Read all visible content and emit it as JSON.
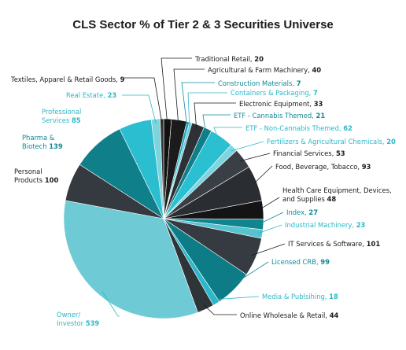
{
  "chart_data": {
    "type": "pie",
    "title": "CLS Sector % of Tier 2 & 3 Securities Universe",
    "slices": [
      {
        "label": "Traditional Retail",
        "value": 20,
        "color": "#111111"
      },
      {
        "label": "Agricultural & Farm Machinery",
        "value": 40,
        "color": "#1b1b1b"
      },
      {
        "label": "Construction Materials",
        "value": 7,
        "color": "#17a9c1"
      },
      {
        "label": "Containers & Packaging",
        "value": 7,
        "color": "#6fcfda"
      },
      {
        "label": "Electronic Equipment",
        "value": 33,
        "color": "#2d3136"
      },
      {
        "label": "ETF - Cannabis Themed",
        "value": 21,
        "color": "#0e7f8a"
      },
      {
        "label": "ETF - Non-Cannabis Themed",
        "value": 62,
        "color": "#2bbfd2"
      },
      {
        "label": "Fertilizers & Agricultural Chemicals",
        "value": 20,
        "color": "#7dd6df"
      },
      {
        "label": "Financial Services",
        "value": 53,
        "color": "#3a3f45"
      },
      {
        "label": "Food, Beverage, Tobacco",
        "value": 93,
        "color": "#2a2e33"
      },
      {
        "label": "Health Care Equipment, Devices, and Supplies",
        "value": 48,
        "color": "#141414"
      },
      {
        "label": "Index",
        "value": 27,
        "color": "#11858f"
      },
      {
        "label": "Industrial Machinery",
        "value": 23,
        "color": "#56c3cf"
      },
      {
        "label": "IT Services & Software",
        "value": 101,
        "color": "#363b41"
      },
      {
        "label": "Licensed CRB",
        "value": 99,
        "color": "#0e7c86"
      },
      {
        "label": "Media & Publsihing",
        "value": 18,
        "color": "#2ab8cb"
      },
      {
        "label": "Online Wholesale & Retail",
        "value": 44,
        "color": "#2f3439"
      },
      {
        "label": "Owner/ Investor",
        "value": 539,
        "color": "#6ecbd5"
      },
      {
        "label": "Personal Products",
        "value": 100,
        "color": "#353a40"
      },
      {
        "label": "Pharma & Biotech",
        "value": 139,
        "color": "#0f7f89"
      },
      {
        "label": "Professional Services",
        "value": 85,
        "color": "#2bbdd0"
      },
      {
        "label": "Real Estate",
        "value": 23,
        "color": "#7fd3dc"
      },
      {
        "label": "Textiles, Apparel & Retail Goods",
        "value": 9,
        "color": "#333333"
      }
    ]
  }
}
